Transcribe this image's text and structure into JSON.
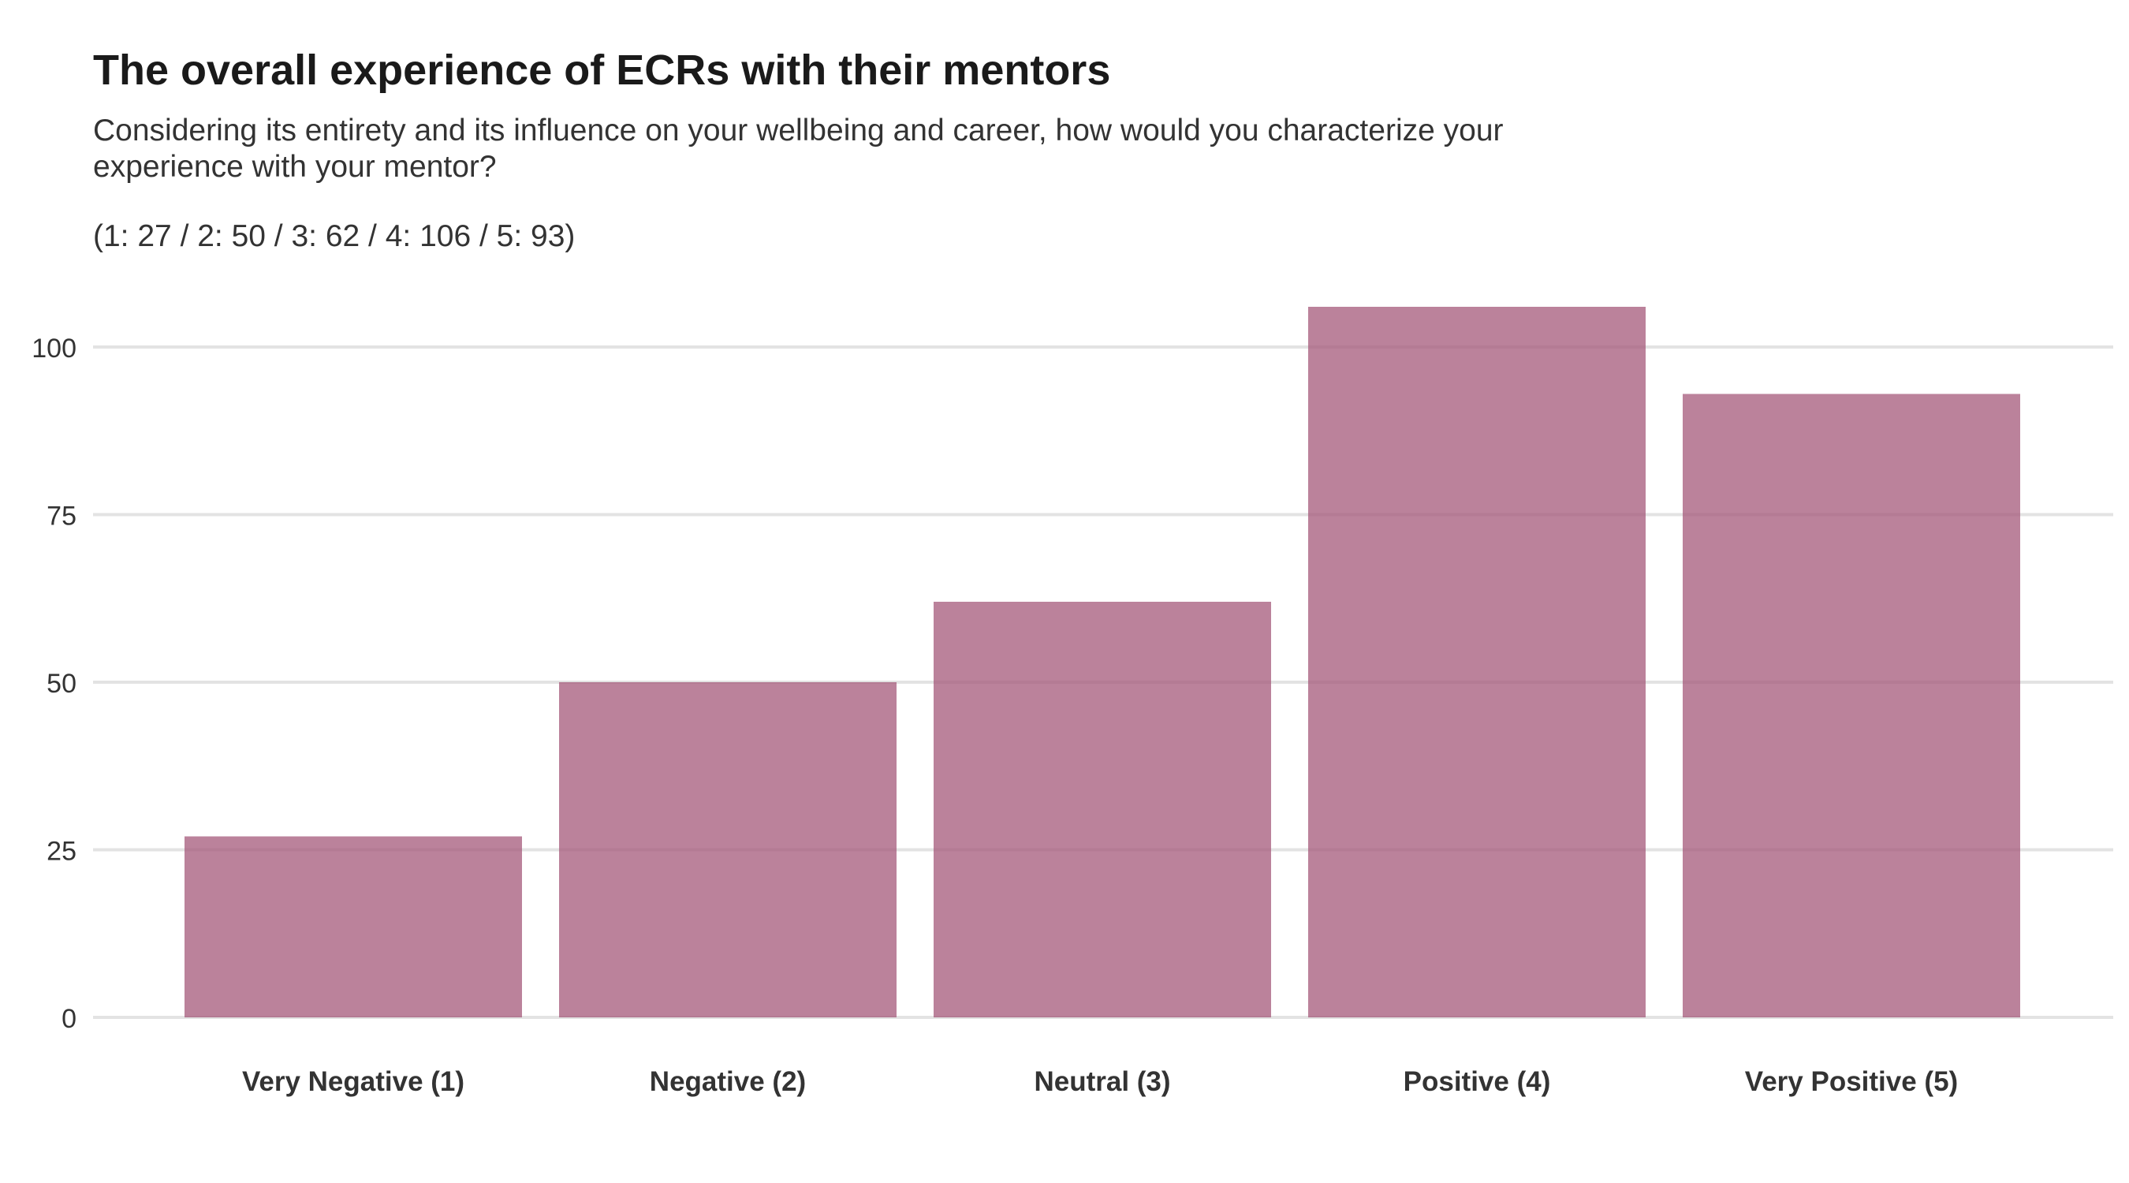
{
  "chart_data": {
    "type": "bar",
    "title": "The overall experience of ECRs with their mentors",
    "subtitle": "Considering its entirety and its influence on your wellbeing and career, how would you characterize your experience with your mentor?",
    "counts_note": "(1: 27 / 2: 50 / 3: 62 / 4: 106 / 5: 93)",
    "categories": [
      "Very Negative (1)",
      "Negative (2)",
      "Neutral (3)",
      "Positive (4)",
      "Very Positive (5)"
    ],
    "values": [
      27,
      50,
      62,
      106,
      93
    ],
    "ylim": [
      0,
      110
    ],
    "yticks": [
      0,
      25,
      50,
      75,
      100
    ],
    "xlabel": "",
    "ylabel": "",
    "grid": true,
    "legend": "none",
    "bar_color": "#a4587a",
    "bar_opacity": 0.75
  }
}
